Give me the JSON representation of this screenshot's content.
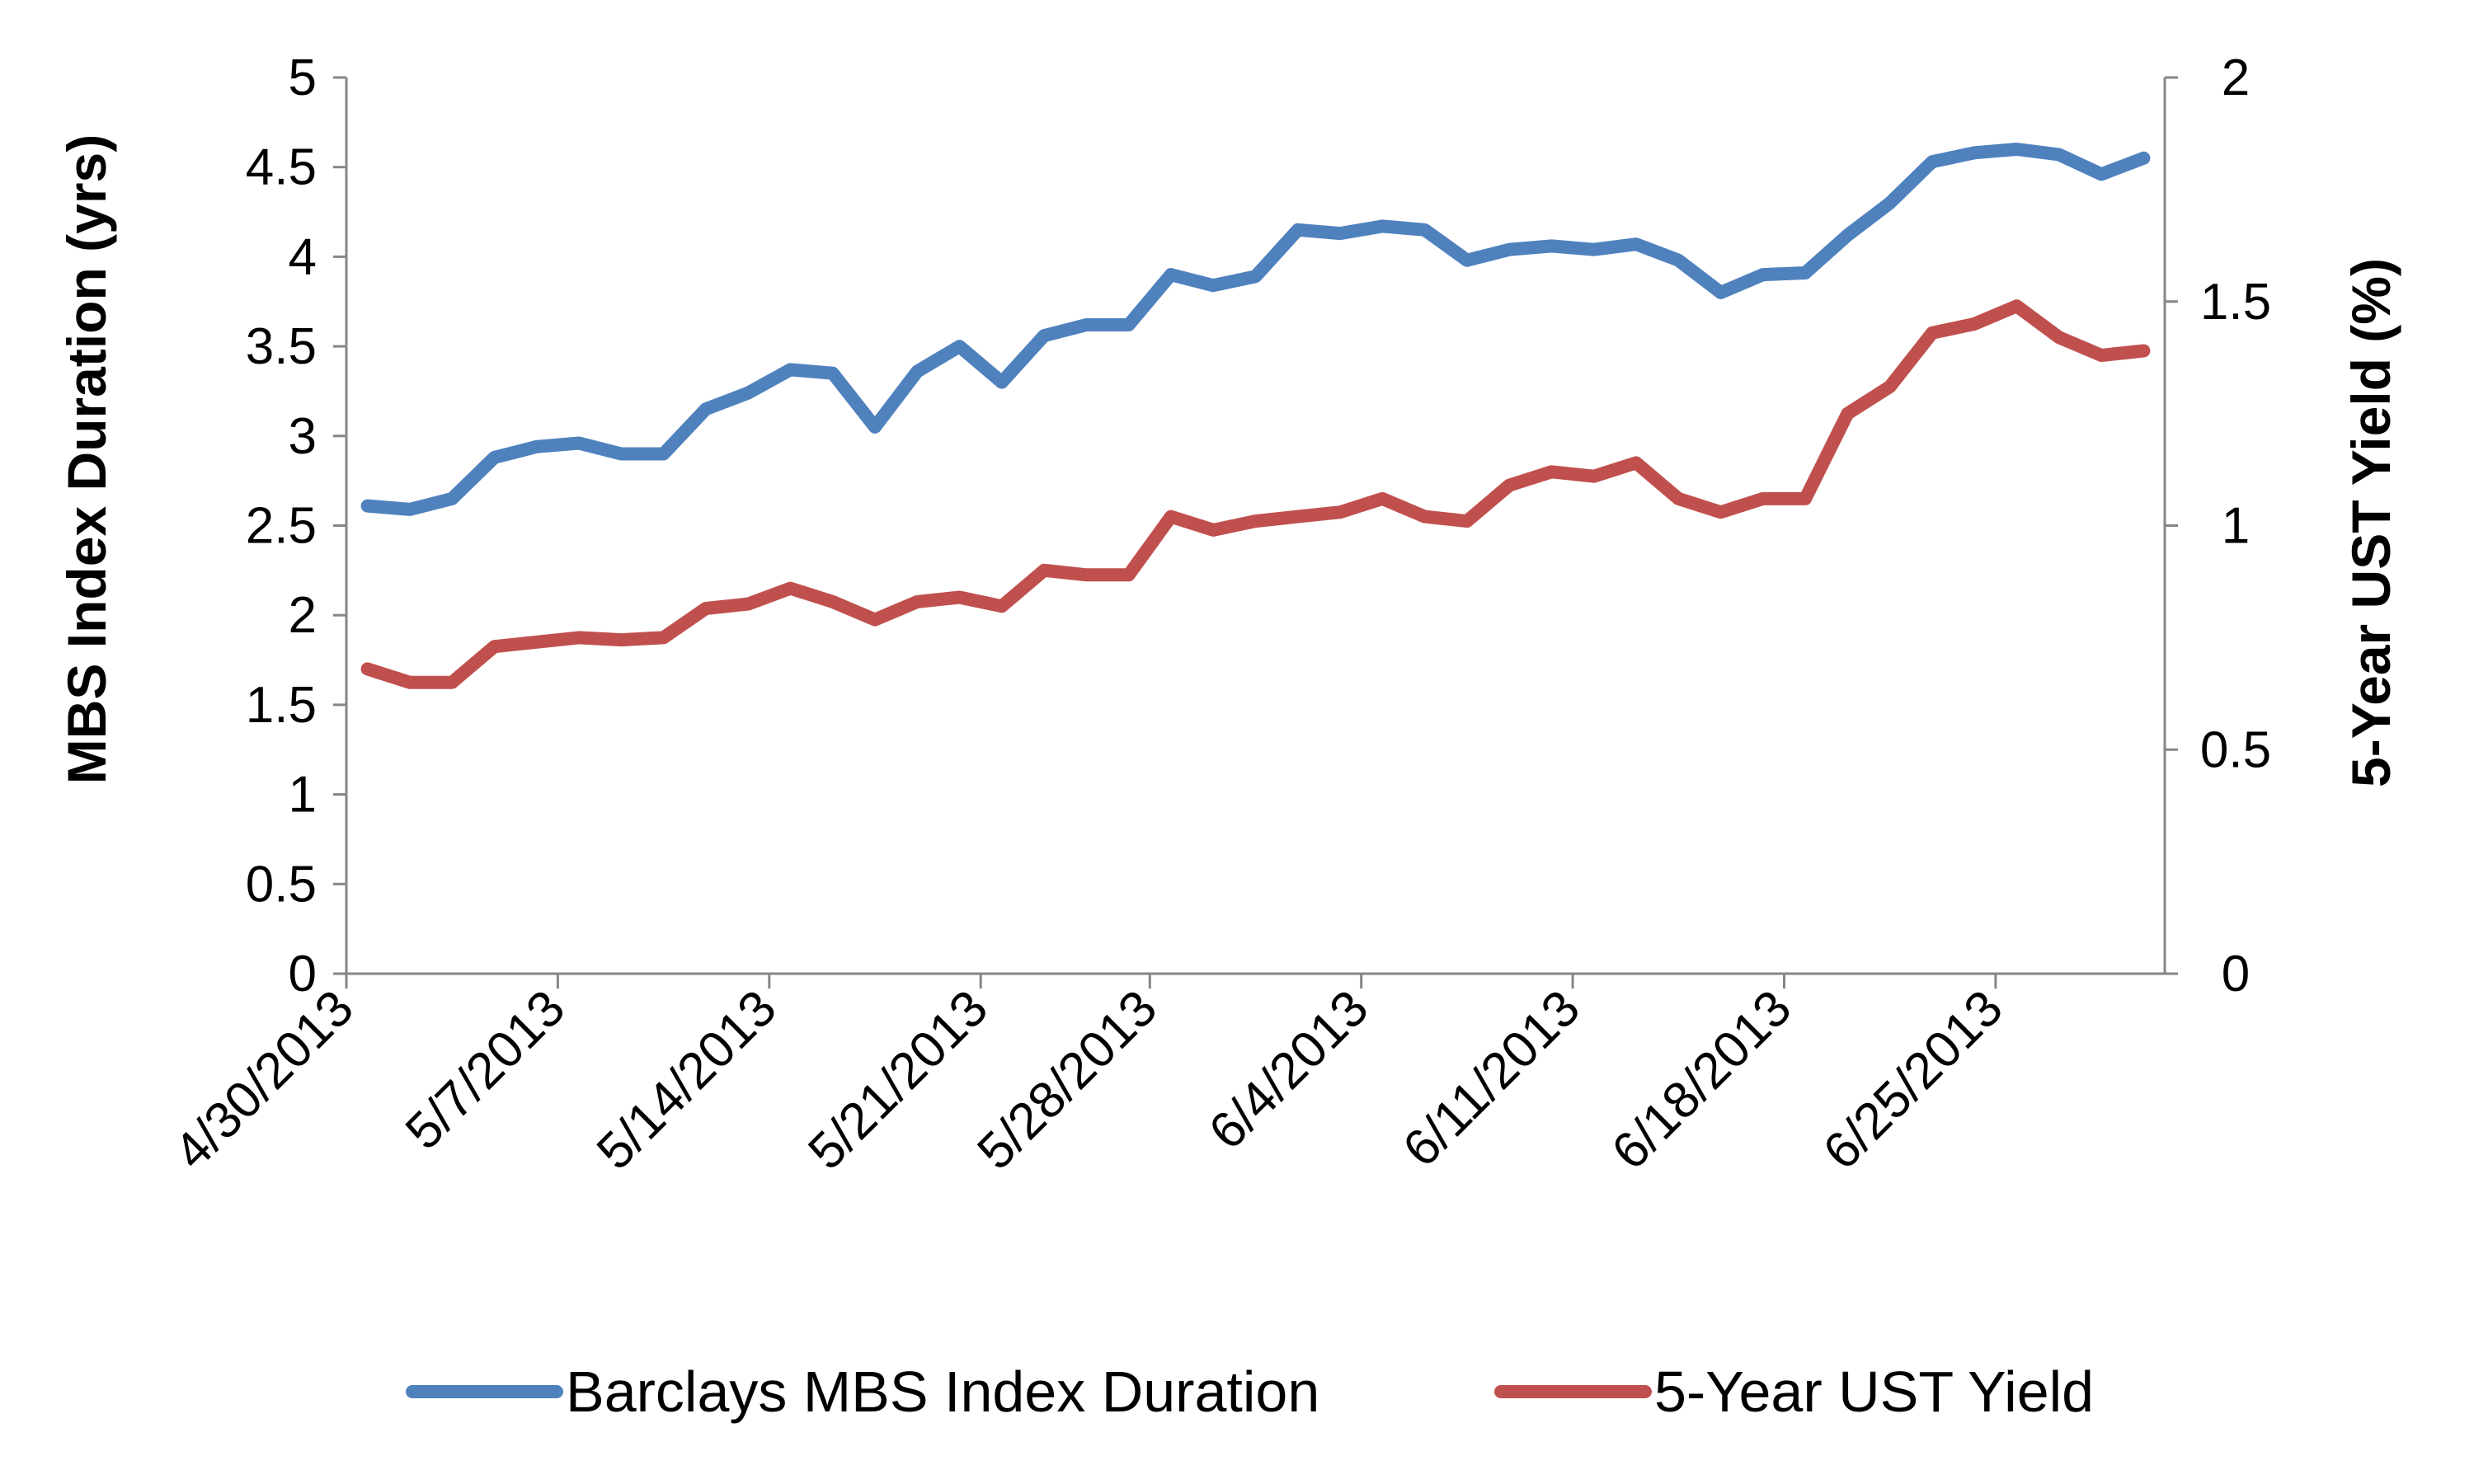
{
  "chart_data": {
    "type": "line",
    "x": [
      "4/30/2013",
      "5/1/2013",
      "5/2/2013",
      "5/3/2013",
      "5/6/2013",
      "5/7/2013",
      "5/8/2013",
      "5/9/2013",
      "5/10/2013",
      "5/13/2013",
      "5/14/2013",
      "5/15/2013",
      "5/16/2013",
      "5/17/2013",
      "5/20/2013",
      "5/21/2013",
      "5/22/2013",
      "5/23/2013",
      "5/24/2013",
      "5/28/2013",
      "5/29/2013",
      "5/30/2013",
      "5/31/2013",
      "6/3/2013",
      "6/4/2013",
      "6/5/2013",
      "6/6/2013",
      "6/7/2013",
      "6/10/2013",
      "6/11/2013",
      "6/12/2013",
      "6/13/2013",
      "6/14/2013",
      "6/17/2013",
      "6/18/2013",
      "6/19/2013",
      "6/20/2013",
      "6/21/2013",
      "6/24/2013",
      "6/25/2013",
      "6/26/2013",
      "6/27/2013",
      "6/28/2013"
    ],
    "series": [
      {
        "name": "Barclays MBS Index Duration",
        "axis": "left",
        "color": "#4f81bd",
        "values": [
          2.61,
          2.59,
          2.65,
          2.88,
          2.94,
          2.96,
          2.9,
          2.9,
          3.15,
          3.24,
          3.37,
          3.35,
          3.05,
          3.36,
          3.5,
          3.3,
          3.56,
          3.62,
          3.62,
          3.9,
          3.84,
          3.89,
          4.15,
          4.13,
          4.17,
          4.15,
          3.98,
          4.04,
          4.06,
          4.04,
          4.07,
          3.98,
          3.8,
          3.9,
          3.91,
          4.12,
          4.3,
          4.53,
          4.58,
          4.6,
          4.57,
          4.46,
          4.55
        ]
      },
      {
        "name": "5-Year UST Yield",
        "axis": "right",
        "color": "#c0504d",
        "values": [
          0.68,
          0.65,
          0.65,
          0.73,
          0.74,
          0.75,
          0.745,
          0.75,
          0.815,
          0.825,
          0.86,
          0.83,
          0.79,
          0.83,
          0.84,
          0.82,
          0.9,
          0.89,
          0.89,
          1.02,
          0.99,
          1.01,
          1.02,
          1.03,
          1.06,
          1.02,
          1.01,
          1.09,
          1.12,
          1.11,
          1.14,
          1.06,
          1.03,
          1.06,
          1.06,
          1.25,
          1.31,
          1.43,
          1.45,
          1.49,
          1.42,
          1.38,
          1.39
        ]
      }
    ],
    "x_tick_labels": [
      "4/30/2013",
      "5/7/2013",
      "5/14/2013",
      "5/21/2013",
      "5/28/2013",
      "6/4/2013",
      "6/11/2013",
      "6/18/2013",
      "6/25/2013"
    ],
    "y_left": {
      "label": "MBS Index Duration (yrs)",
      "ylim": [
        0,
        5
      ],
      "ticks": [
        "0",
        "0.5",
        "1",
        "1.5",
        "2",
        "2.5",
        "3",
        "3.5",
        "4",
        "4.5",
        "5"
      ]
    },
    "y_right": {
      "label": "5-Year UST Yield (%)",
      "ylim": [
        0,
        2
      ],
      "ticks": [
        "0",
        "0.5",
        "1",
        "1.5",
        "2"
      ]
    },
    "grid": false,
    "legend_position": "bottom",
    "axis_color": "#868686"
  }
}
